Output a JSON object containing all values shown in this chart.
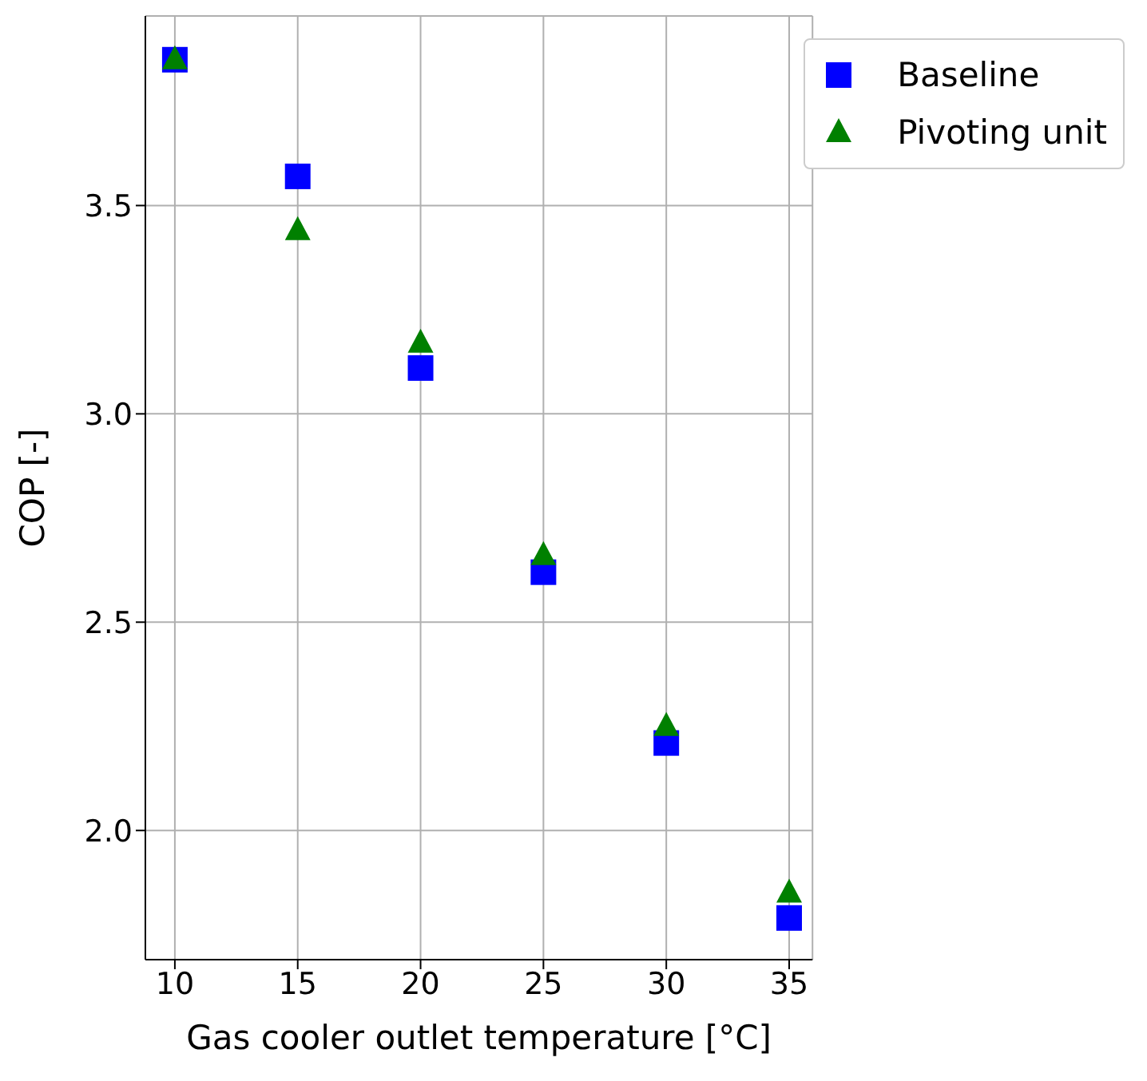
{
  "chart_data": {
    "type": "scatter",
    "xlabel": "Gas cooler outlet temperature [°C]",
    "ylabel": "COP [-]",
    "x": [
      10,
      15,
      20,
      25,
      30,
      35
    ],
    "series": [
      {
        "name": "Baseline",
        "color": "#0000ff",
        "marker": "square",
        "values": [
          3.85,
          3.57,
          3.11,
          2.62,
          2.21,
          1.79
        ]
      },
      {
        "name": "Pivoting unit",
        "color": "#008000",
        "marker": "triangle",
        "values": [
          3.85,
          3.44,
          3.17,
          2.66,
          2.25,
          1.85
        ]
      }
    ],
    "xlim": [
      8.8,
      35.95
    ],
    "xticks": [
      10,
      15,
      20,
      25,
      30,
      35
    ],
    "ylim": [
      1.69,
      3.955
    ],
    "yticks": [
      {
        "value": 2.0,
        "label": "2.0"
      },
      {
        "value": 2.5,
        "label": "2.5"
      },
      {
        "value": 3.0,
        "label": "3.0"
      },
      {
        "value": 3.5,
        "label": "3.5"
      }
    ],
    "grid": true,
    "legend": "top right"
  }
}
